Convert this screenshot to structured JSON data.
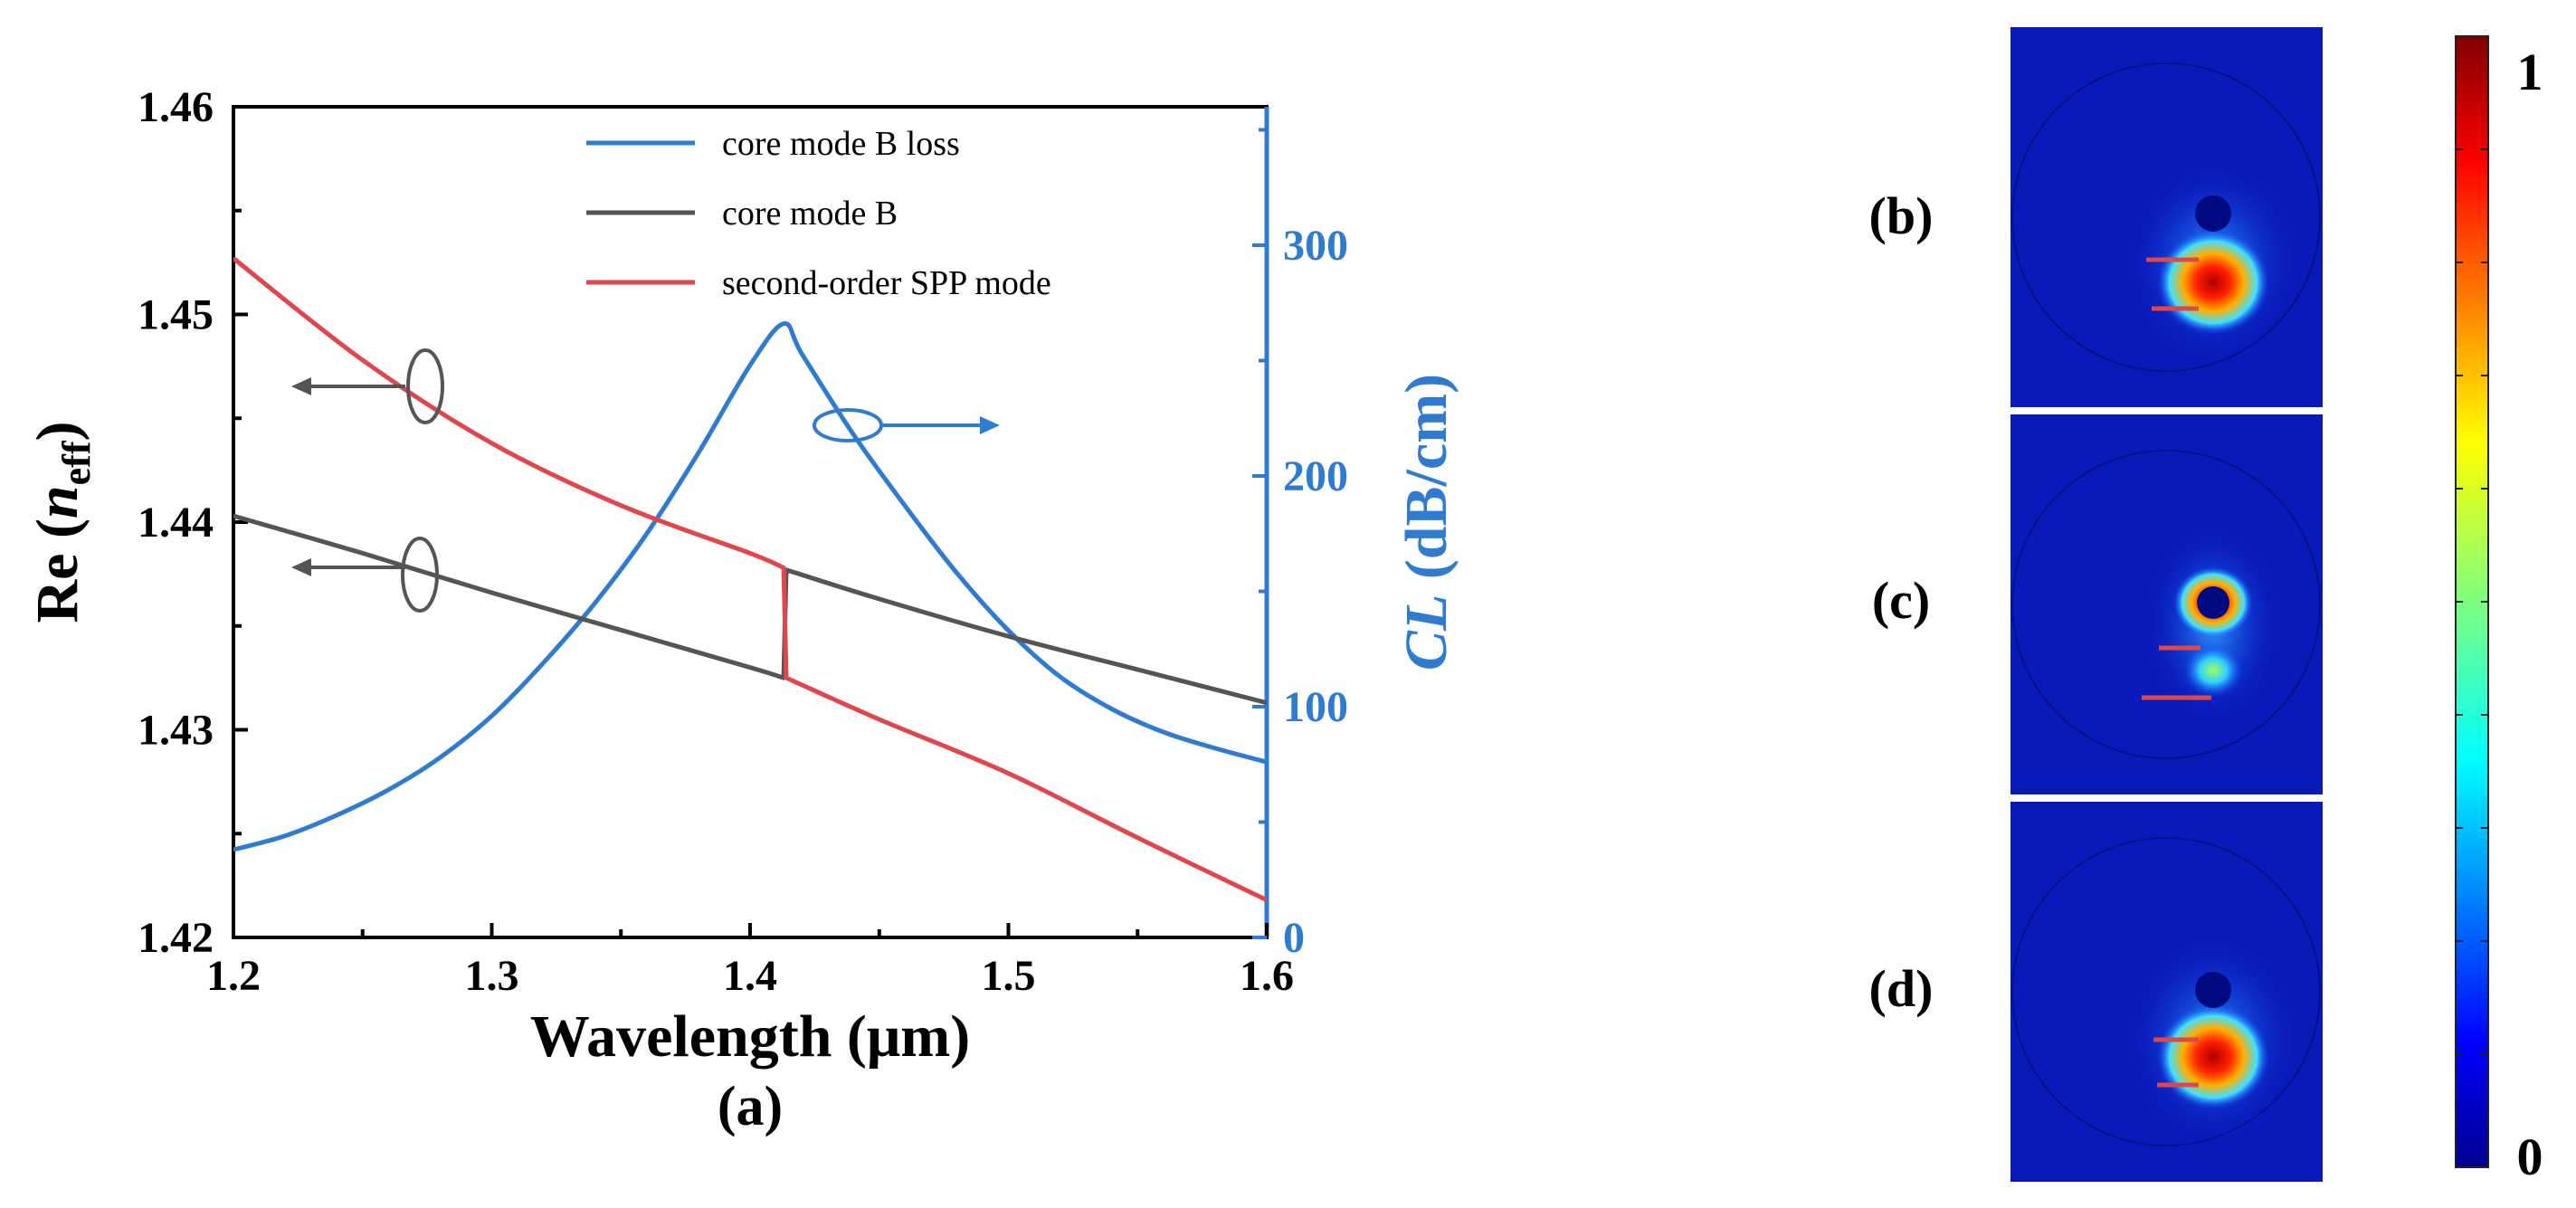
{
  "chart_data": [
    {
      "panel": "(a)",
      "type": "line",
      "xlabel": "Wavelength (μm)",
      "ylabel_left": {
        "prefix": "Re (",
        "italic": "n",
        "sub": "eff",
        "suffix": ")"
      },
      "ylabel_right": {
        "italic": "CL",
        "rest": " (dB/cm)"
      },
      "x_range": [
        1.2,
        1.6
      ],
      "y_left_range": [
        1.42,
        1.46
      ],
      "y_right_range": [
        0,
        360
      ],
      "x_ticks": [
        "1.2",
        "1.3",
        "1.4",
        "1.5",
        "1.6"
      ],
      "y_left_ticks": [
        "1.42",
        "1.43",
        "1.44",
        "1.45",
        "1.46"
      ],
      "y_right_ticks": [
        "0",
        "100",
        "200",
        "300"
      ],
      "legend": [
        {
          "label": "core mode B loss",
          "color": "#2f7bd0"
        },
        {
          "label": "core mode B",
          "color": "#555555"
        },
        {
          "label": "second-order SPP mode",
          "color": "#e0474c"
        }
      ],
      "series": [
        {
          "name": "core mode B loss",
          "axis": "right",
          "color": "#2f7bd0",
          "x": [
            1.2,
            1.22,
            1.24,
            1.26,
            1.28,
            1.3,
            1.32,
            1.34,
            1.36,
            1.38,
            1.4,
            1.413,
            1.42,
            1.44,
            1.46,
            1.48,
            1.5,
            1.52,
            1.54,
            1.56,
            1.58,
            1.6
          ],
          "y": [
            38,
            44,
            53,
            64,
            78,
            96,
            119,
            145,
            175,
            210,
            248,
            266,
            253,
            218,
            187,
            158,
            133,
            113,
            99,
            89,
            82,
            76
          ]
        },
        {
          "name": "core mode B",
          "axis": "left",
          "color": "#555555",
          "x": [
            1.2,
            1.25,
            1.3,
            1.35,
            1.4,
            1.413,
            1.414,
            1.45,
            1.5,
            1.55,
            1.6
          ],
          "y": [
            1.4403,
            1.4385,
            1.4366,
            1.4348,
            1.433,
            1.4325,
            1.4377,
            1.4363,
            1.4345,
            1.4329,
            1.4313
          ]
        },
        {
          "name": "second-order SPP mode",
          "axis": "left",
          "color": "#e0474c",
          "x": [
            1.2,
            1.25,
            1.3,
            1.35,
            1.4,
            1.413,
            1.414,
            1.45,
            1.5,
            1.55,
            1.6
          ],
          "y": [
            1.4527,
            1.4478,
            1.4438,
            1.4408,
            1.4385,
            1.4378,
            1.4325,
            1.4305,
            1.4279,
            1.4248,
            1.4218
          ]
        }
      ]
    },
    {
      "type": "heatmap",
      "colorbar": {
        "max_label": "1",
        "min_label": "0"
      },
      "panels": [
        "(b)",
        "(c)",
        "(d)"
      ]
    }
  ]
}
